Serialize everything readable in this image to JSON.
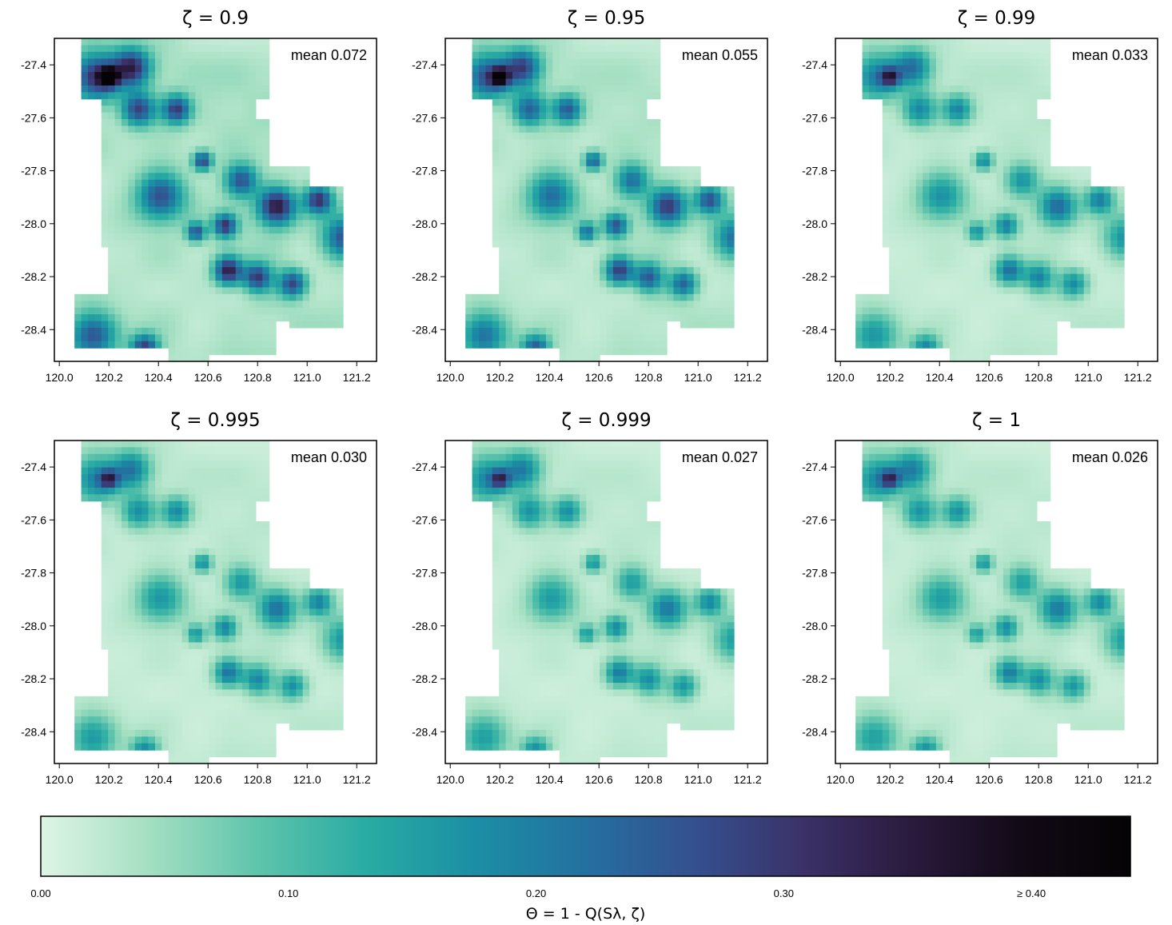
{
  "chart_data": {
    "type": "heatmap",
    "panels": [
      {
        "title": "ζ = 0.9",
        "zeta": 0.9,
        "mean_label": "mean 0.072",
        "mean": 0.072
      },
      {
        "title": "ζ = 0.95",
        "zeta": 0.95,
        "mean_label": "mean 0.055",
        "mean": 0.055
      },
      {
        "title": "ζ = 0.99",
        "zeta": 0.99,
        "mean_label": "mean 0.033",
        "mean": 0.033
      },
      {
        "title": "ζ = 0.995",
        "zeta": 0.995,
        "mean_label": "mean 0.030",
        "mean": 0.03
      },
      {
        "title": "ζ = 0.999",
        "zeta": 0.999,
        "mean_label": "mean 0.027",
        "mean": 0.027
      },
      {
        "title": "ζ = 1",
        "zeta": 1,
        "mean_label": "mean 0.026",
        "mean": 0.026
      }
    ],
    "x_ticks": [
      "120.0",
      "120.2",
      "120.4",
      "120.6",
      "120.8",
      "121.0",
      "121.2"
    ],
    "x_tick_values": [
      120.0,
      120.2,
      120.4,
      120.6,
      120.8,
      121.0,
      121.2
    ],
    "y_ticks": [
      "-27.4",
      "-27.6",
      "-27.8",
      "-28.0",
      "-28.2",
      "-28.4"
    ],
    "y_tick_values": [
      -27.4,
      -27.6,
      -27.8,
      -28.0,
      -28.2,
      -28.4
    ],
    "xlim": [
      119.98,
      121.28
    ],
    "ylim": [
      -28.52,
      -27.3
    ],
    "colorbar": {
      "title": "Θ = 1 - Q(Sλ, ζ)",
      "tick_labels": [
        "0.00",
        "0.10",
        "0.20",
        "0.30",
        "≥ 0.40"
      ],
      "tick_values": [
        0.0,
        0.1,
        0.2,
        0.3,
        0.4
      ],
      "range": [
        0,
        0.44
      ],
      "colors": [
        "#def5e5",
        "#a4dfc2",
        "#5ec4ac",
        "#28aba3",
        "#1b8ea5",
        "#2470a0",
        "#34508f",
        "#3b3168",
        "#2a1a3d",
        "#120a16",
        "#050305"
      ]
    },
    "grid": false,
    "legend": "bottom"
  }
}
